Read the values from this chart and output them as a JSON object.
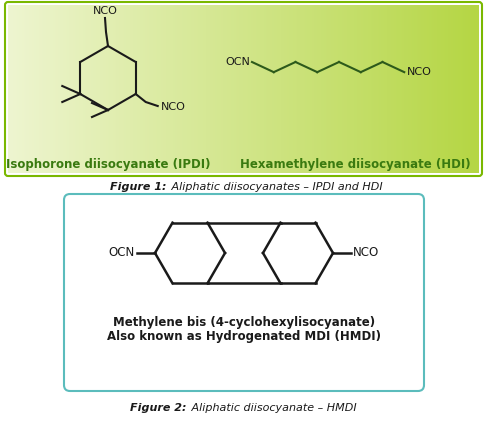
{
  "fig_width": 4.87,
  "fig_height": 4.29,
  "dpi": 100,
  "bg_color": "#ffffff",
  "box1_color_left": "#eef5d0",
  "box1_color_right": "#b5d644",
  "box1_border_color": "#7ab800",
  "box2_bg": "#ffffff",
  "box2_border_color": "#5bbcbc",
  "figure1_caption_bold": "Figure 1:",
  "figure1_caption_italic": " Aliphatic diisocyanates – IPDI and HDI",
  "figure2_caption_bold": "Figure 2:",
  "figure2_caption_italic": " Aliphatic diisocyanate – HMDI",
  "label_IPDI": "Isophorone diisocyanate (IPDI)",
  "label_HDI": "Hexamethylene diisocyanate (HDI)",
  "label_HMDI_line1": "Methylene bis (4-cyclohexylisocyanate)",
  "label_HMDI_line2": "Also known as Hydrogenated MDI (HMDI)",
  "ring_color": "#1a1a1a",
  "label_color_green": "#3a7a10",
  "struct_color": "#2d5a1b"
}
